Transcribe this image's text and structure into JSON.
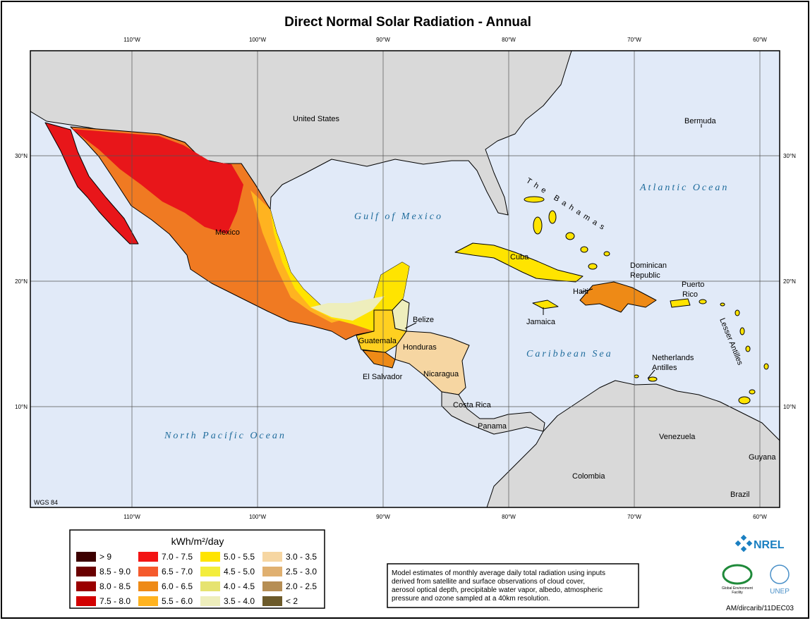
{
  "title": "Direct Normal Solar Radiation - Annual",
  "graticule": {
    "longitudes": [
      {
        "value": -110,
        "label": "110°W"
      },
      {
        "value": -100,
        "label": "100°W"
      },
      {
        "value": -90,
        "label": "90°W"
      },
      {
        "value": -80,
        "label": "80°W"
      },
      {
        "value": -70,
        "label": "70°W"
      },
      {
        "value": -60,
        "label": "60°W"
      }
    ],
    "latitudes": [
      {
        "value": 30,
        "label": "30°N"
      },
      {
        "value": 20,
        "label": "20°N"
      },
      {
        "value": 10,
        "label": "10°N"
      }
    ]
  },
  "places": [
    [
      "United States"
    ],
    [
      "Bermuda"
    ],
    [
      "Mexico"
    ],
    [
      "Cuba"
    ],
    [
      "Dominican",
      "Republic"
    ],
    [
      "Haiti"
    ],
    [
      "Puerto",
      "Rico"
    ],
    [
      "Jamaica"
    ],
    [
      "Belize"
    ],
    [
      "Guatemala"
    ],
    [
      "Honduras"
    ],
    [
      "El Salvador"
    ],
    [
      "Nicaragua"
    ],
    [
      "Costa Rica"
    ],
    [
      "Panama"
    ],
    [
      "Netherlands",
      "Antilles"
    ],
    [
      "Venezuela"
    ],
    [
      "Colombia"
    ],
    [
      "Guyana"
    ],
    [
      "Brazil"
    ]
  ],
  "water": [
    "Atlantic Ocean",
    "Gulf of Mexico",
    "Caribbean Sea",
    "North Pacific Ocean",
    "The Bahamas",
    "Lesser Antilles"
  ],
  "datum": "WGS 84",
  "legend": {
    "title": "kWh/m²/day",
    "items": [
      {
        "label": "> 9",
        "color": "#3c0000"
      },
      {
        "label": "8.5 - 9.0",
        "color": "#6a0000"
      },
      {
        "label": "8.0 - 8.5",
        "color": "#9a0000"
      },
      {
        "label": "7.5 - 8.0",
        "color": "#d20000"
      },
      {
        "label": "7.0 - 7.5",
        "color": "#f31414"
      },
      {
        "label": "6.5 - 7.0",
        "color": "#f55a2c"
      },
      {
        "label": "6.0 - 6.5",
        "color": "#ee8a16"
      },
      {
        "label": "5.5 - 6.0",
        "color": "#ffb320"
      },
      {
        "label": "5.0 - 5.5",
        "color": "#ffe400"
      },
      {
        "label": "4.5 - 5.0",
        "color": "#f3ed3c"
      },
      {
        "label": "4.0 - 4.5",
        "color": "#e6e370"
      },
      {
        "label": "3.5 - 4.0",
        "color": "#eeeebc"
      },
      {
        "label": "3.0 - 3.5",
        "color": "#f6d6a2"
      },
      {
        "label": "2.5 - 3.0",
        "color": "#e0b070"
      },
      {
        "label": "2.0 - 2.5",
        "color": "#b68e54"
      },
      {
        "label": "< 2",
        "color": "#6c5a2a"
      }
    ]
  },
  "note": [
    "Model estimates of monthly average daily total radiation using inputs",
    "derived from satellite and surface observations of cloud cover,",
    "aerosol optical depth, precipitable water vapor, albedo, atmospheric",
    "pressure and ozone sampled at a 40km resolution."
  ],
  "logos": {
    "nrel": "NREL",
    "gef": [
      "Global Environment",
      "Facility"
    ],
    "unep": "UNEP"
  },
  "map_id": "AM/dircarib/11DEC03"
}
